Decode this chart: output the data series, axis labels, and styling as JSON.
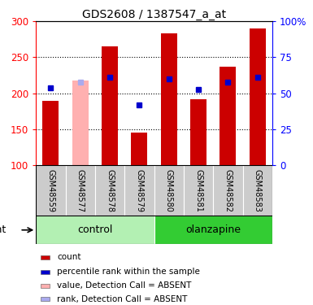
{
  "title": "GDS2608 / 1387547_a_at",
  "samples": [
    "GSM48559",
    "GSM48577",
    "GSM48578",
    "GSM48579",
    "GSM48580",
    "GSM48581",
    "GSM48582",
    "GSM48583"
  ],
  "bar_values": [
    190,
    218,
    265,
    145,
    283,
    192,
    237,
    290
  ],
  "bar_colors": [
    "#cc0000",
    "#ffb0b0",
    "#cc0000",
    "#cc0000",
    "#cc0000",
    "#cc0000",
    "#cc0000",
    "#cc0000"
  ],
  "rank_dots": [
    {
      "sample_idx": 0,
      "value": 208,
      "absent": false
    },
    {
      "sample_idx": 1,
      "value": 215,
      "absent": true
    },
    {
      "sample_idx": 2,
      "value": 222,
      "absent": false
    },
    {
      "sample_idx": 3,
      "value": 184,
      "absent": false
    },
    {
      "sample_idx": 4,
      "value": 220,
      "absent": false
    },
    {
      "sample_idx": 5,
      "value": 205,
      "absent": false
    },
    {
      "sample_idx": 6,
      "value": 216,
      "absent": false
    },
    {
      "sample_idx": 7,
      "value": 222,
      "absent": false
    }
  ],
  "groups": [
    {
      "label": "control",
      "start": 0,
      "end": 3,
      "color": "#b3f0b3"
    },
    {
      "label": "olanzapine",
      "start": 4,
      "end": 7,
      "color": "#33cc33"
    }
  ],
  "ylim_left": [
    100,
    300
  ],
  "ylim_right": [
    0,
    100
  ],
  "yticks_left": [
    100,
    150,
    200,
    250,
    300
  ],
  "yticks_right": [
    0,
    25,
    50,
    75,
    100
  ],
  "yticklabels_right": [
    "0",
    "25",
    "50",
    "75",
    "100%"
  ],
  "grid_lines": [
    150,
    200,
    250
  ],
  "bar_width": 0.55,
  "dot_color_normal": "#0000cc",
  "dot_color_absent": "#aaaaee",
  "legend_items": [
    {
      "label": "count",
      "color": "#cc0000"
    },
    {
      "label": "percentile rank within the sample",
      "color": "#0000cc"
    },
    {
      "label": "value, Detection Call = ABSENT",
      "color": "#ffb0b0"
    },
    {
      "label": "rank, Detection Call = ABSENT",
      "color": "#aaaaee"
    }
  ]
}
